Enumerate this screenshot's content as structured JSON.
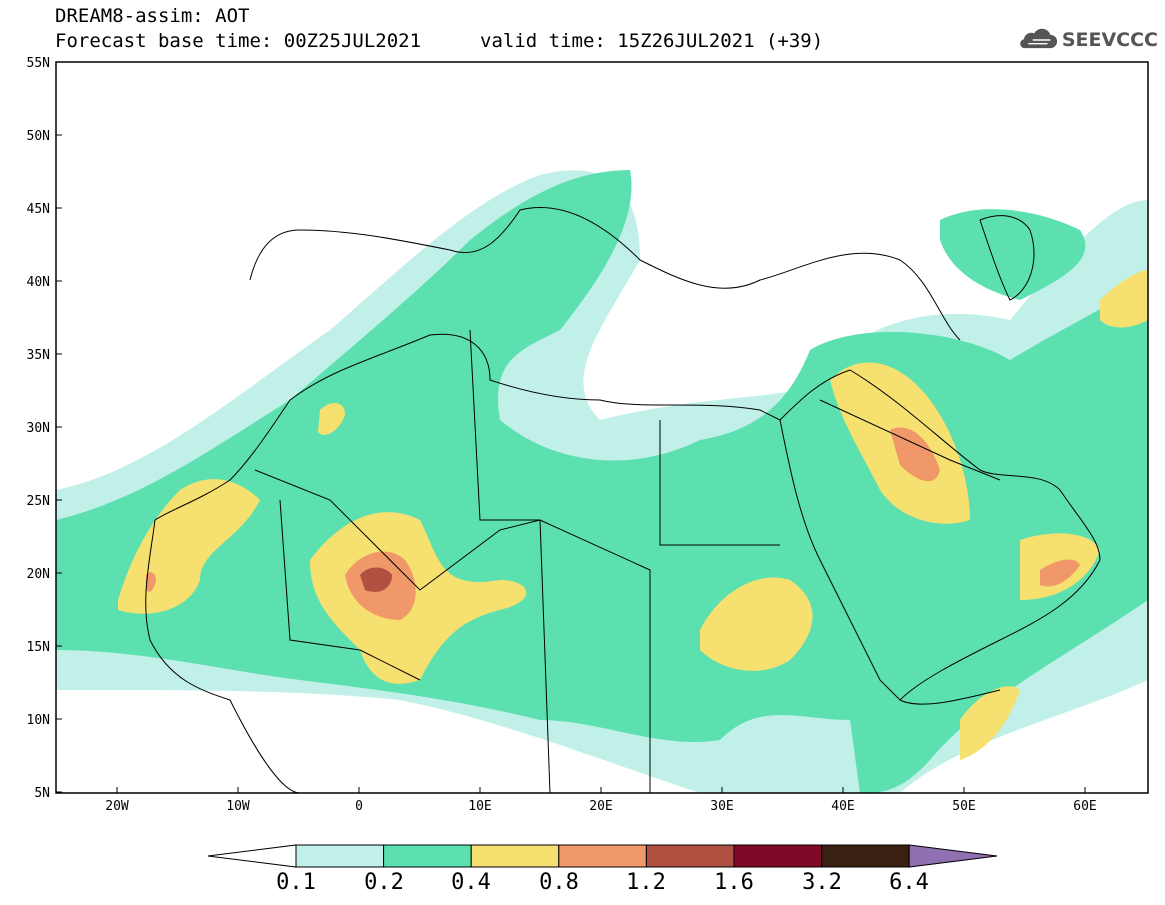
{
  "header": {
    "title": "DREAM8-assim: AOT",
    "base_time": "Forecast base time: 00Z25JUL2021",
    "valid_time": "valid time: 15Z26JUL2021 (+39)"
  },
  "logo": {
    "text": "SEEVCCC",
    "icon": "cloud-icon"
  },
  "map": {
    "lon_range": [
      -25,
      65
    ],
    "lat_range": [
      5,
      55
    ],
    "lat_ticks": [
      "55N",
      "50N",
      "45N",
      "40N",
      "35N",
      "30N",
      "25N",
      "20N",
      "15N",
      "10N",
      "5N"
    ],
    "lon_ticks": [
      "20W",
      "10W",
      "0",
      "10E",
      "20E",
      "30E",
      "40E",
      "50E",
      "60E"
    ],
    "variable": "AOT"
  },
  "colorbar": {
    "colors": [
      "#ffffff",
      "#c0f0e8",
      "#5ce0b0",
      "#f5e070",
      "#f0986a",
      "#b05040",
      "#800828",
      "#3a2010",
      "#9070b0"
    ],
    "labels": [
      "0.1",
      "0.2",
      "0.4",
      "0.8",
      "1.2",
      "1.6",
      "3.2",
      "6.4"
    ]
  }
}
